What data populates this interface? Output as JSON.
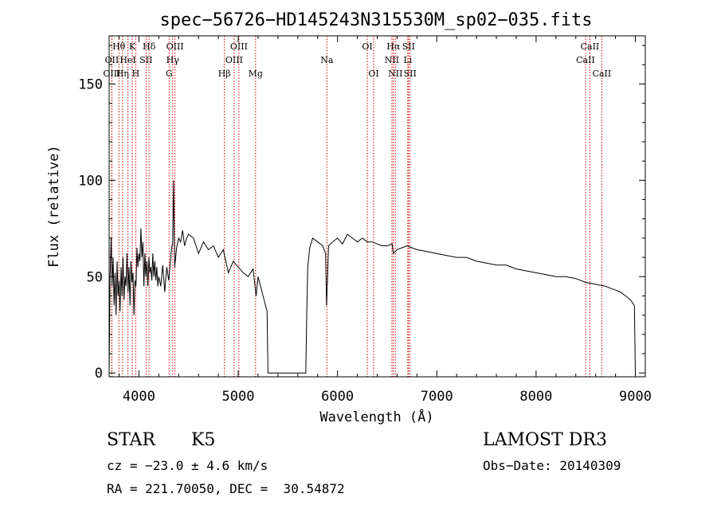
{
  "chart_data": {
    "type": "line",
    "title": "spec−56726−HD145243N315530M_sp02−035.fits",
    "xlabel": "Wavelength (Å)",
    "ylabel": "Flux (relative)",
    "xlim": [
      3700,
      9100
    ],
    "ylim": [
      -2,
      175
    ],
    "xticks": [
      4000,
      5000,
      6000,
      7000,
      8000,
      9000
    ],
    "yticks": [
      0,
      50,
      100,
      150
    ],
    "xtick_labels": [
      "4000",
      "5000",
      "6000",
      "7000",
      "8000",
      "9000"
    ],
    "ytick_labels": [
      "0",
      "50",
      "100",
      "150"
    ],
    "series": [
      {
        "name": "flux",
        "x": [
          3700,
          3710,
          3720,
          3730,
          3740,
          3750,
          3760,
          3770,
          3780,
          3790,
          3800,
          3810,
          3820,
          3830,
          3840,
          3850,
          3860,
          3870,
          3880,
          3890,
          3900,
          3910,
          3920,
          3930,
          3940,
          3950,
          3960,
          3970,
          3980,
          3990,
          4000,
          4010,
          4020,
          4030,
          4040,
          4050,
          4060,
          4070,
          4080,
          4090,
          4100,
          4110,
          4120,
          4130,
          4140,
          4150,
          4160,
          4170,
          4180,
          4190,
          4200,
          4220,
          4240,
          4260,
          4280,
          4300,
          4320,
          4330,
          4340,
          4350,
          4360,
          4380,
          4400,
          4420,
          4440,
          4460,
          4480,
          4500,
          4550,
          4600,
          4650,
          4700,
          4750,
          4800,
          4850,
          4900,
          4950,
          5000,
          5050,
          5100,
          5150,
          5180,
          5200,
          5250,
          5290,
          5300,
          5310,
          5320,
          5400,
          5500,
          5600,
          5660,
          5670,
          5680,
          5690,
          5700,
          5720,
          5750,
          5800,
          5850,
          5880,
          5890,
          5900,
          5910,
          5950,
          6000,
          6050,
          6100,
          6150,
          6200,
          6250,
          6300,
          6350,
          6400,
          6450,
          6500,
          6550,
          6563,
          6600,
          6650,
          6700,
          6750,
          6800,
          6900,
          7000,
          7100,
          7200,
          7300,
          7400,
          7500,
          7600,
          7700,
          7800,
          7900,
          8000,
          8100,
          8200,
          8300,
          8400,
          8500,
          8600,
          8700,
          8800,
          8850,
          8900,
          8950,
          8990,
          9000
        ],
        "y": [
          0,
          50,
          70,
          45,
          60,
          35,
          52,
          30,
          58,
          40,
          48,
          32,
          55,
          40,
          60,
          38,
          50,
          45,
          62,
          42,
          55,
          35,
          58,
          47,
          52,
          30,
          48,
          45,
          65,
          55,
          62,
          58,
          75,
          60,
          68,
          45,
          62,
          50,
          58,
          45,
          60,
          52,
          55,
          48,
          62,
          50,
          58,
          48,
          55,
          45,
          50,
          45,
          56,
          42,
          55,
          48,
          60,
          65,
          68,
          100,
          55,
          65,
          70,
          68,
          74,
          66,
          70,
          72,
          70,
          62,
          68,
          64,
          66,
          60,
          64,
          52,
          58,
          55,
          52,
          50,
          54,
          40,
          50,
          40,
          32,
          0,
          0,
          0,
          0,
          0,
          0,
          0,
          0,
          0,
          30,
          55,
          65,
          70,
          68,
          66,
          62,
          35,
          50,
          66,
          68,
          70,
          67,
          72,
          70,
          68,
          70,
          68,
          68,
          67,
          66,
          66,
          67,
          62,
          64,
          65,
          66,
          65,
          64,
          63,
          62,
          61,
          60,
          60,
          58,
          57,
          56,
          56,
          54,
          53,
          52,
          51,
          50,
          50,
          49,
          47,
          46,
          45,
          43,
          42,
          40,
          38,
          35,
          0
        ]
      }
    ],
    "emission_lines": [
      {
        "label": "Hθ",
        "wl": 3798,
        "row": 0
      },
      {
        "label": "K",
        "wl": 3934,
        "row": 0
      },
      {
        "label": "Hδ",
        "wl": 4102,
        "row": 0
      },
      {
        "label": "OIII",
        "wl": 4363,
        "row": 0
      },
      {
        "label": "OIII",
        "wl": 5007,
        "row": 0
      },
      {
        "label": "OI",
        "wl": 6300,
        "row": 0
      },
      {
        "label": "Hα",
        "wl": 6563,
        "row": 0
      },
      {
        "label": "SII",
        "wl": 6716,
        "row": 0
      },
      {
        "label": "CaII",
        "wl": 8542,
        "row": 0
      },
      {
        "label": "OII",
        "wl": 3727,
        "row": 1
      },
      {
        "label": "HeI",
        "wl": 3889,
        "row": 1
      },
      {
        "label": "SII",
        "wl": 4072,
        "row": 1
      },
      {
        "label": "Hγ",
        "wl": 4340,
        "row": 1
      },
      {
        "label": "OIII",
        "wl": 4959,
        "row": 1
      },
      {
        "label": "Na",
        "wl": 5893,
        "row": 1
      },
      {
        "label": "NII",
        "wl": 6548,
        "row": 1
      },
      {
        "label": "Li",
        "wl": 6708,
        "row": 1
      },
      {
        "label": "CaII",
        "wl": 8498,
        "row": 1
      },
      {
        "label": "OIII",
        "wl": 3727,
        "row": 2
      },
      {
        "label": "Hη",
        "wl": 3835,
        "row": 2
      },
      {
        "label": "H",
        "wl": 3968,
        "row": 2
      },
      {
        "label": "G",
        "wl": 4304,
        "row": 2
      },
      {
        "label": "Hβ",
        "wl": 4861,
        "row": 2
      },
      {
        "label": "Mg",
        "wl": 5175,
        "row": 2
      },
      {
        "label": "OI",
        "wl": 6364,
        "row": 2
      },
      {
        "label": "NII",
        "wl": 6583,
        "row": 2
      },
      {
        "label": "SII",
        "wl": 6731,
        "row": 2
      },
      {
        "label": "CaII",
        "wl": 8662,
        "row": 2
      }
    ],
    "line_color": "#000000",
    "marker_color": "#cc0000"
  },
  "info": {
    "object_class": "STAR",
    "subclass": "K5",
    "survey": "LAMOST DR3",
    "redshift": "cz = −23.0 ± 4.6 km/s",
    "obs_date": "Obs−Date: 20140309",
    "coords": "RA = 221.70050, DEC =  30.54872"
  }
}
